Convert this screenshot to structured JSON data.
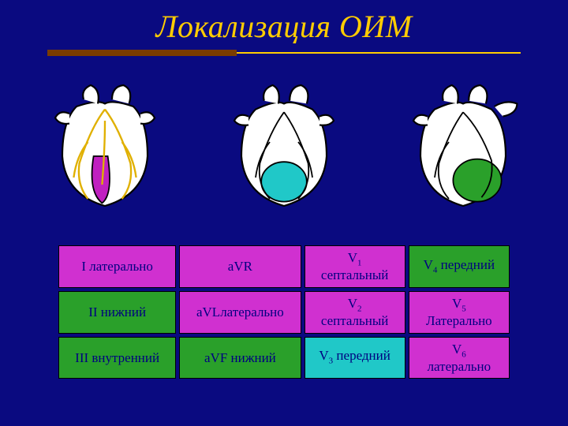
{
  "slide": {
    "background_color": "#0a0a80",
    "title": {
      "text": "Локализация ОИМ",
      "color": "#ffcc00",
      "font_size_pt": 30,
      "font_style": "italic"
    },
    "title_bar": {
      "left_color": "#7a3c00",
      "line_color": "#ffcc00"
    },
    "heart_colors": {
      "outline": "#000000",
      "body": "#ffffff",
      "vessels": "#ffe070",
      "highlight_magenta": "#c020c0",
      "highlight_cyan": "#20c8c8",
      "highlight_green": "#2aa02a"
    },
    "table": {
      "cell_border": "#000000",
      "text_color": "#000080",
      "colors": {
        "magenta": "#d030d0",
        "green": "#2aa02a",
        "cyan": "#20c8c8"
      },
      "rows": [
        [
          {
            "text": "I латерально",
            "bg": "magenta"
          },
          {
            "text": "aVR",
            "bg": "magenta"
          },
          {
            "text": "V₁ септальный",
            "bg": "magenta",
            "v": "V",
            "s": "1",
            "rest": " септальный"
          },
          {
            "text": "V₄ передний",
            "bg": "green",
            "v": "V",
            "s": "4",
            "rest": " передний"
          }
        ],
        [
          {
            "text": "II нижний",
            "bg": "green"
          },
          {
            "text": "aVLлатерально",
            "bg": "magenta"
          },
          {
            "text": "V₂ септальный",
            "bg": "magenta",
            "v": "V",
            "s": "2",
            "rest": " септальный"
          },
          {
            "text": "V₅ Латерально",
            "bg": "magenta",
            "v": "V",
            "s": "5",
            "rest": " Латерально"
          }
        ],
        [
          {
            "text": "III внутренний",
            "bg": "green"
          },
          {
            "text": "aVF нижний",
            "bg": "green"
          },
          {
            "text": "V₃ передний",
            "bg": "cyan",
            "v": "V",
            "s": "3",
            "rest": "  передний"
          },
          {
            "text": "V₆ латерально",
            "bg": "magenta",
            "v": "V",
            "s": "6",
            "rest": " латерально"
          }
        ]
      ]
    }
  }
}
